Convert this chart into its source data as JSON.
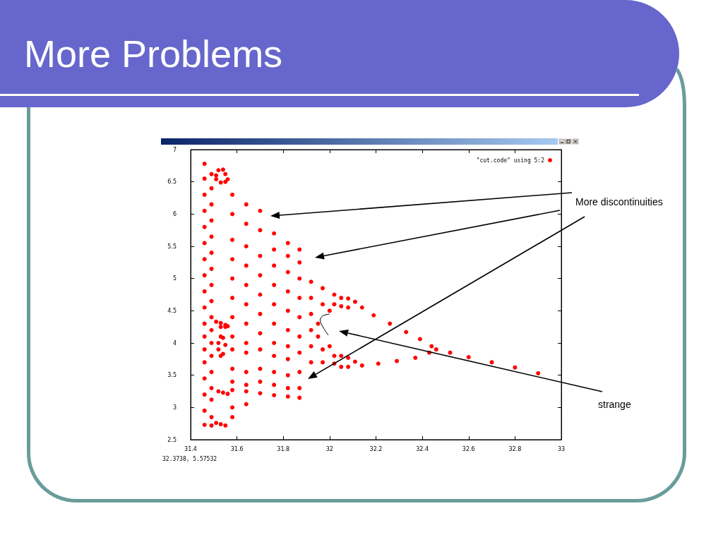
{
  "chart_data": {
    "type": "scatter",
    "title": "More Problems",
    "xlim": [
      31.4,
      33
    ],
    "xticks": [
      31.4,
      31.6,
      31.8,
      32,
      32.2,
      32.4,
      32.6,
      32.8,
      33
    ],
    "ylim": [
      2.5,
      7
    ],
    "yticks": [
      2.5,
      3,
      3.5,
      4,
      4.5,
      5,
      5.5,
      6,
      6.5,
      7
    ],
    "grid": false,
    "legend": "top right",
    "marker": "circle",
    "annotations": [
      "More discontinuities",
      "strange",
      "32.3738, 5.57532"
    ],
    "series": [
      {
        "name": "\"cut.code\" using 5:2",
        "color": "#ff0000",
        "x": [
          31.46,
          31.46,
          31.46,
          31.46,
          31.46,
          31.46,
          31.46,
          31.46,
          31.46,
          31.46,
          31.46,
          31.46,
          31.46,
          31.46,
          31.46,
          31.46,
          31.46,
          31.46,
          31.49,
          31.49,
          31.49,
          31.49,
          31.49,
          31.49,
          31.49,
          31.49,
          31.49,
          31.49,
          31.49,
          31.49,
          31.49,
          31.49,
          31.49,
          31.49,
          31.49,
          31.49,
          31.51,
          31.52,
          31.54,
          31.55,
          31.56,
          31.55,
          31.53,
          31.51,
          31.51,
          31.53,
          31.55,
          31.56,
          31.53,
          31.55,
          31.52,
          31.53,
          31.54,
          31.55,
          31.54,
          31.53,
          31.52,
          31.52,
          31.54,
          31.56,
          31.51,
          31.53,
          31.55,
          31.58,
          31.58,
          31.58,
          31.58,
          31.58,
          31.58,
          31.58,
          31.58,
          31.58,
          31.58,
          31.58,
          31.58,
          31.58,
          31.58,
          31.64,
          31.64,
          31.64,
          31.64,
          31.64,
          31.64,
          31.64,
          31.64,
          31.64,
          31.64,
          31.64,
          31.64,
          31.64,
          31.7,
          31.7,
          31.7,
          31.7,
          31.7,
          31.7,
          31.7,
          31.7,
          31.7,
          31.7,
          31.7,
          31.76,
          31.76,
          31.76,
          31.76,
          31.76,
          31.76,
          31.76,
          31.76,
          31.76,
          31.76,
          31.76,
          31.82,
          31.82,
          31.82,
          31.82,
          31.82,
          31.82,
          31.82,
          31.82,
          31.82,
          31.82,
          31.82,
          31.87,
          31.87,
          31.87,
          31.87,
          31.87,
          31.87,
          31.87,
          31.87,
          31.87,
          31.87,
          31.92,
          31.92,
          31.92,
          31.92,
          31.92,
          31.92,
          31.97,
          31.97,
          31.95,
          31.95,
          31.97,
          31.97,
          32.02,
          32.02,
          32.0,
          32.0,
          32.02,
          32.02,
          32.05,
          32.08,
          32.11,
          32.14,
          32.08,
          32.05,
          32.05,
          32.08,
          32.11,
          32.14,
          32.08,
          32.05,
          32.19,
          32.26,
          32.33,
          32.39,
          32.44,
          32.46,
          32.21,
          32.29,
          32.37,
          32.43,
          32.52,
          32.6,
          32.7,
          32.8,
          32.9
        ],
        "values": [
          6.78,
          6.55,
          6.3,
          6.05,
          5.8,
          5.55,
          5.3,
          5.05,
          4.8,
          4.55,
          4.3,
          4.1,
          3.9,
          3.7,
          3.45,
          3.2,
          2.95,
          2.73,
          6.62,
          6.4,
          6.15,
          5.9,
          5.65,
          5.4,
          5.15,
          4.9,
          4.65,
          4.4,
          4.2,
          4.0,
          3.8,
          3.55,
          3.3,
          3.12,
          2.85,
          2.72,
          6.6,
          6.68,
          6.69,
          6.62,
          6.54,
          6.5,
          6.49,
          6.54,
          4.33,
          4.31,
          4.28,
          4.26,
          4.25,
          4.25,
          4.0,
          4.1,
          4.08,
          3.97,
          3.83,
          3.8,
          3.9,
          3.25,
          3.23,
          3.21,
          2.76,
          2.74,
          2.72,
          6.3,
          6.0,
          5.6,
          5.3,
          5.0,
          4.7,
          4.4,
          4.1,
          3.9,
          3.6,
          3.4,
          3.27,
          3.0,
          2.85,
          6.15,
          5.85,
          5.5,
          5.2,
          4.9,
          4.6,
          4.3,
          4.0,
          3.85,
          3.55,
          3.35,
          3.25,
          3.05,
          6.05,
          5.75,
          5.35,
          5.05,
          4.75,
          4.45,
          4.15,
          3.9,
          3.6,
          3.4,
          3.22,
          5.7,
          5.45,
          5.2,
          4.9,
          4.6,
          4.3,
          4.0,
          3.8,
          3.55,
          3.35,
          3.19,
          5.55,
          5.35,
          5.1,
          4.8,
          4.5,
          4.2,
          3.95,
          3.75,
          3.5,
          3.3,
          3.17,
          5.45,
          5.25,
          5.0,
          4.7,
          4.4,
          4.1,
          3.85,
          3.55,
          3.3,
          3.15,
          4.95,
          4.7,
          4.45,
          4.2,
          3.95,
          3.7,
          4.85,
          4.6,
          4.3,
          4.1,
          3.9,
          3.7,
          4.75,
          4.6,
          4.5,
          3.95,
          3.8,
          3.68,
          4.7,
          4.69,
          4.64,
          4.55,
          4.55,
          4.57,
          3.8,
          3.77,
          3.71,
          3.65,
          3.63,
          3.63,
          4.43,
          4.3,
          4.17,
          4.06,
          3.95,
          3.9,
          3.68,
          3.72,
          3.77,
          3.85,
          3.85,
          3.78,
          3.7,
          3.62,
          3.53
        ]
      }
    ]
  }
}
